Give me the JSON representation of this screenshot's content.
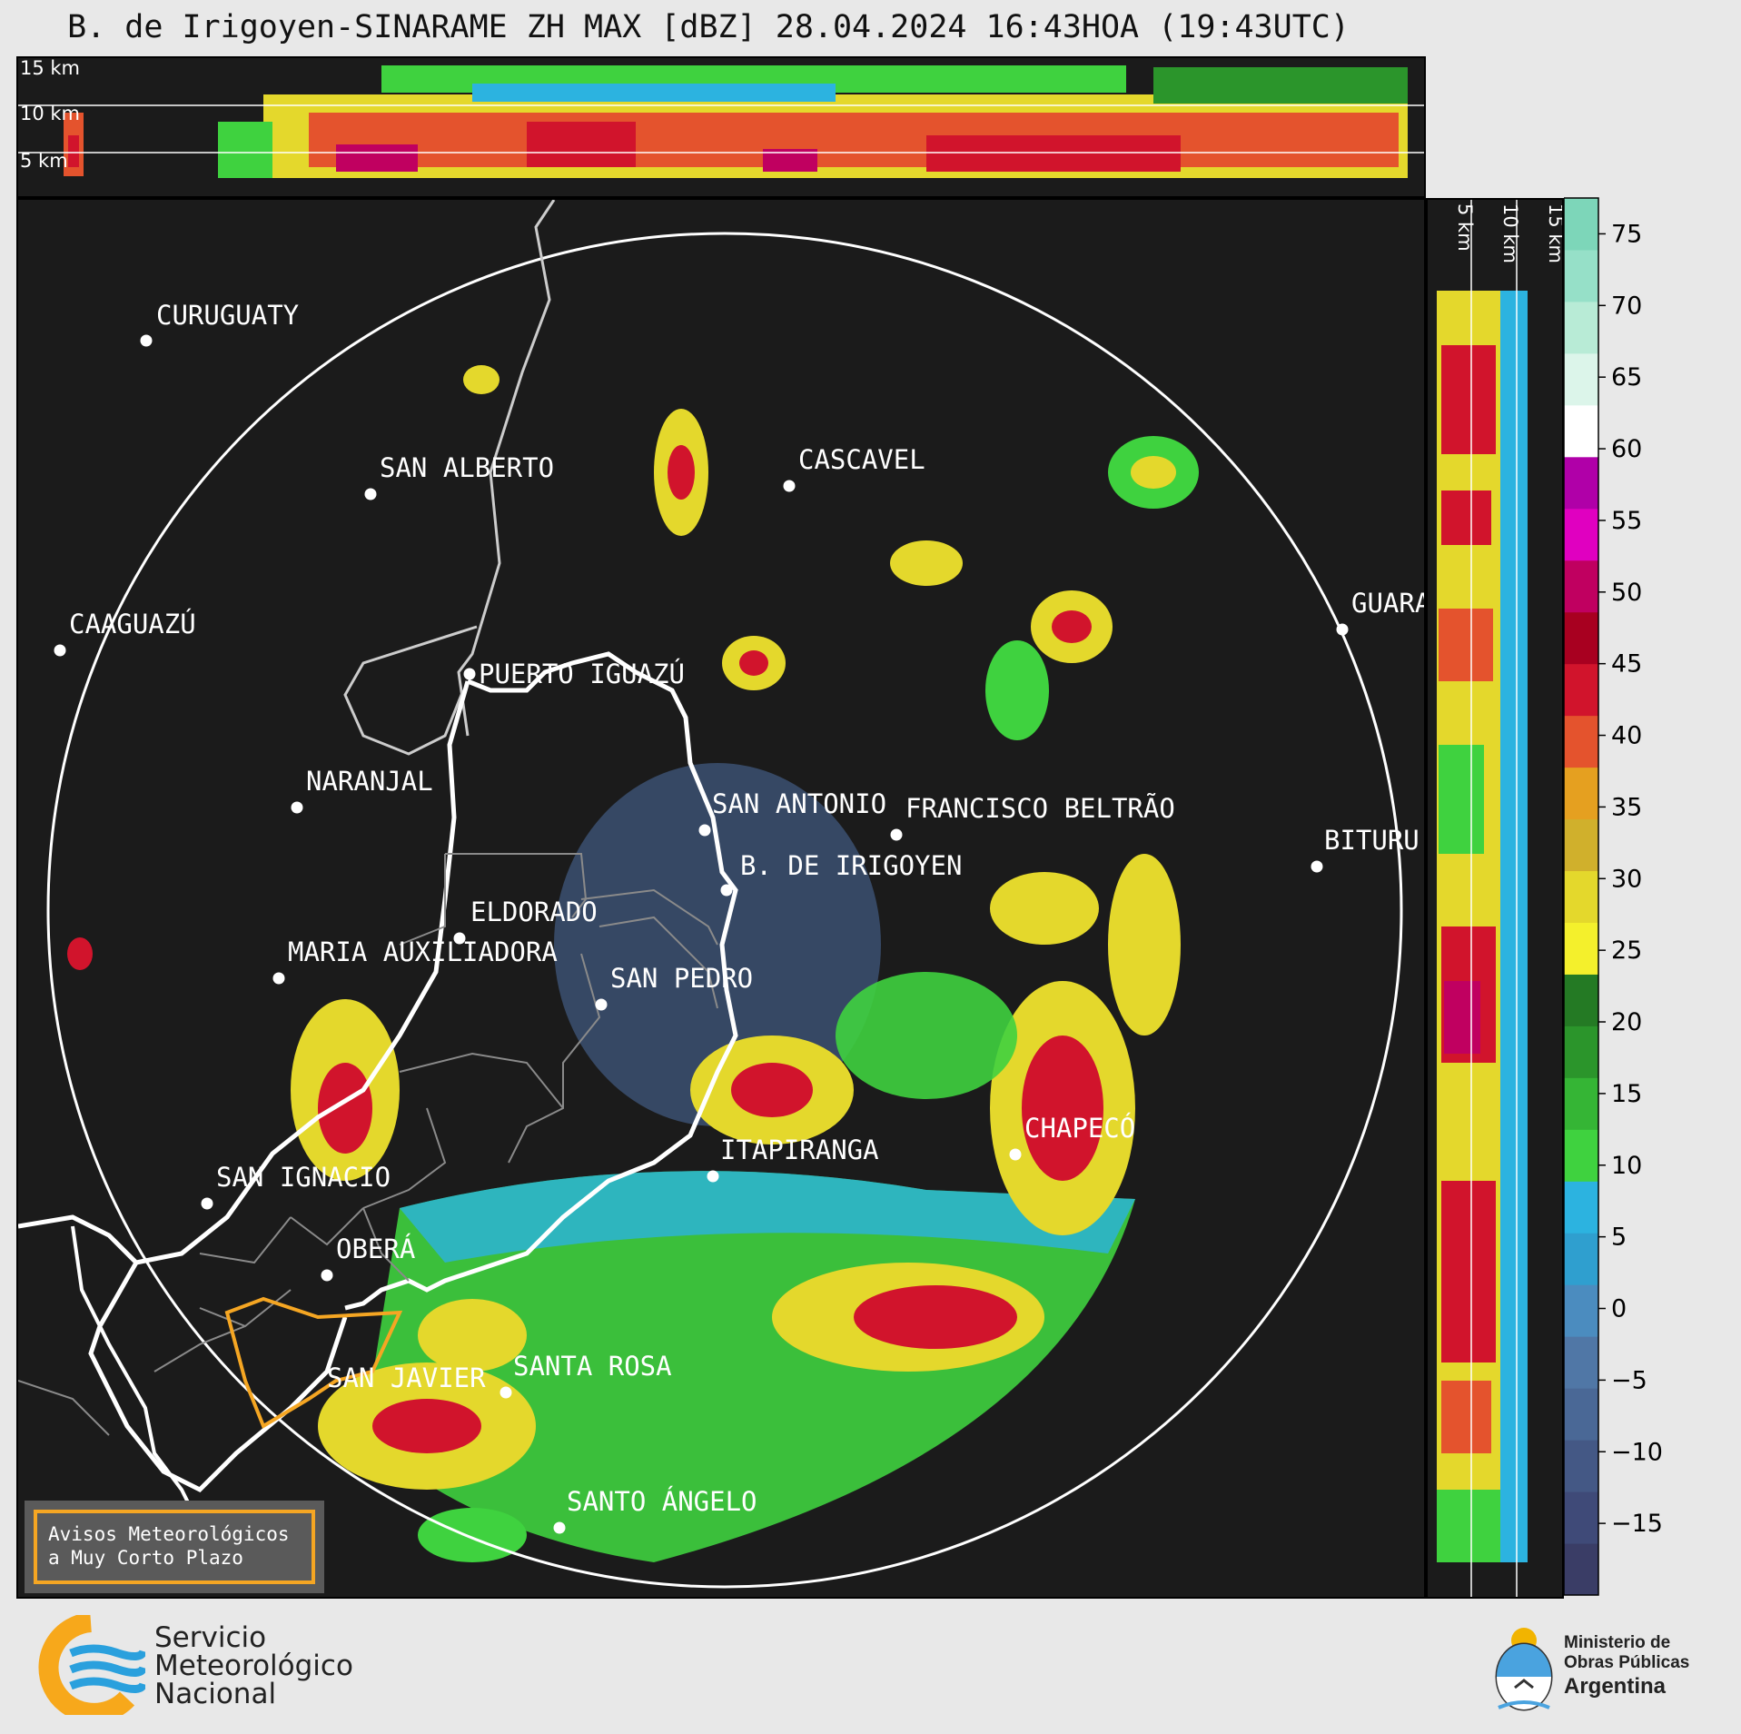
{
  "title": "B. de Irigoyen-SINARAME ZH MAX [dBZ] 28.04.2024 16:43HOA (19:43UTC)",
  "top_panel": {
    "height_labels": [
      "15 km",
      "10 km",
      "5 km"
    ]
  },
  "side_panel": {
    "height_labels": [
      "5 km",
      "10 km",
      "15 km"
    ]
  },
  "colorbar": {
    "ticks": [
      "75",
      "70",
      "65",
      "60",
      "55",
      "50",
      "45",
      "40",
      "35",
      "30",
      "25",
      "20",
      "15",
      "10",
      "5",
      "0",
      "−5",
      "−10",
      "−15"
    ],
    "bands": [
      "#3a3d66",
      "#3f4a78",
      "#445885",
      "#4a6896",
      "#5077a6",
      "#4b8cbf",
      "#2f9fcf",
      "#2cb3e0",
      "#3fd23f",
      "#35b535",
      "#2b952b",
      "#247a24",
      "#f4f02c",
      "#e4d82c",
      "#d0b02c",
      "#e5a020",
      "#e4532d",
      "#d1142c",
      "#a80020",
      "#c00060",
      "#e000c0",
      "#b000a8",
      "#ffffff",
      "#dcf5ea",
      "#b8ebd6",
      "#96e0c8",
      "#7dd6b9"
    ]
  },
  "cities": [
    {
      "name": "CURUGUATY"
    },
    {
      "name": "SAN ALBERTO"
    },
    {
      "name": "CAAGUAZÚ"
    },
    {
      "name": "CASCAVEL"
    },
    {
      "name": "GUARA"
    },
    {
      "name": "PUERTO IGUAZÚ"
    },
    {
      "name": "NARANJAL"
    },
    {
      "name": "SAN ANTONIO"
    },
    {
      "name": "FRANCISCO BELTRÃO"
    },
    {
      "name": "BITURU"
    },
    {
      "name": "B. DE IRIGOYEN"
    },
    {
      "name": "ELDORADO"
    },
    {
      "name": "MARIA AUXILIADORA"
    },
    {
      "name": "SAN PEDRO"
    },
    {
      "name": "CHAPECÓ"
    },
    {
      "name": "ITAPIRANGA"
    },
    {
      "name": "SAN IGNACIO"
    },
    {
      "name": "OBERÁ"
    },
    {
      "name": "SAN JAVIER"
    },
    {
      "name": "SANTA ROSA"
    },
    {
      "name": "SANTO ÁNGELO"
    }
  ],
  "notice": {
    "line1": "Avisos Meteorológicos",
    "line2": "a Muy Corto Plazo"
  },
  "smn": {
    "line1": "Servicio",
    "line2": "Meteorológico",
    "line3": "Nacional"
  },
  "ministry": {
    "line1": "Ministerio de",
    "line2": "Obras Públicas",
    "line3": "Argentina"
  },
  "colors": {
    "background": "#1b1b1b",
    "warning_outline": "#f5a623",
    "range_ring": "#ffffff"
  }
}
